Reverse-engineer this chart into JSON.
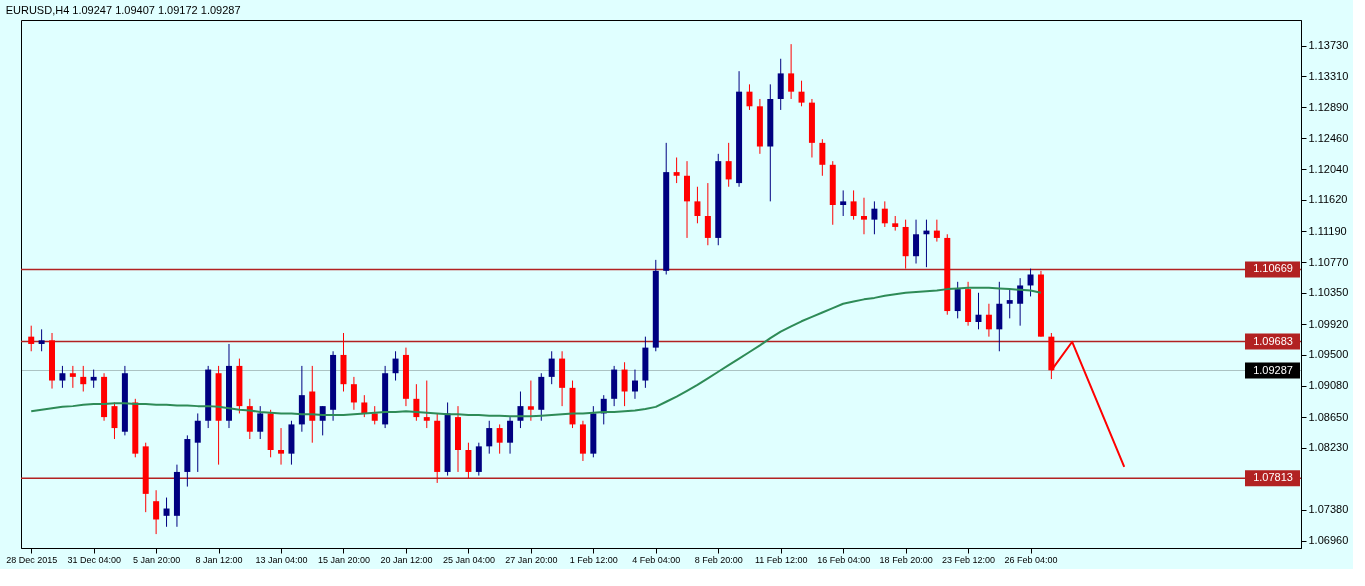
{
  "chart_data": {
    "type": "candlestick",
    "title": "EURUSD,H4  1.09247 1.09407 1.09172 1.09287",
    "categories": [
      "28 Dec 2015",
      null,
      null,
      null,
      null,
      null,
      "31 Dec 04:00",
      null,
      null,
      null,
      null,
      null,
      "5 Jan 20:00",
      null,
      null,
      null,
      null,
      null,
      "8 Jan 12:00",
      null,
      null,
      null,
      null,
      null,
      "13 Jan 04:00",
      null,
      null,
      null,
      null,
      null,
      "15 Jan 20:00",
      null,
      null,
      null,
      null,
      null,
      "20 Jan 12:00",
      null,
      null,
      null,
      null,
      null,
      "25 Jan 04:00",
      null,
      null,
      null,
      null,
      null,
      "27 Jan 20:00",
      null,
      null,
      null,
      null,
      null,
      "1 Feb 12:00",
      null,
      null,
      null,
      null,
      null,
      "4 Feb 04:00",
      null,
      null,
      null,
      null,
      null,
      "8 Feb 20:00",
      null,
      null,
      null,
      null,
      null,
      "11 Feb 12:00",
      null,
      null,
      null,
      null,
      null,
      "16 Feb 04:00",
      null,
      null,
      null,
      null,
      null,
      "18 Feb 20:00",
      null,
      null,
      null,
      null,
      null,
      "23 Feb 12:00",
      null,
      null,
      null,
      null,
      null,
      "26 Feb 04:00",
      null,
      null,
      null,
      null,
      null,
      null,
      null,
      null,
      null,
      null,
      null,
      null,
      null,
      null,
      null,
      null,
      null,
      null,
      null,
      null,
      null,
      null,
      null,
      null,
      null
    ],
    "ohlc": [
      [
        1.0975,
        1.099,
        1.0955,
        1.0965
      ],
      [
        1.0965,
        1.0985,
        1.0955,
        1.097
      ],
      [
        1.097,
        1.098,
        1.0904,
        1.0915
      ],
      [
        1.0915,
        1.0935,
        1.0905,
        1.0925
      ],
      [
        1.0925,
        1.0935,
        1.0905,
        1.092
      ],
      [
        1.092,
        1.0935,
        1.09,
        1.091
      ],
      [
        1.0915,
        1.093,
        1.0905,
        1.092
      ],
      [
        1.092,
        1.0925,
        1.086,
        1.0865
      ],
      [
        1.088,
        1.0885,
        1.0835,
        1.085
      ],
      [
        1.0845,
        1.0935,
        1.084,
        1.0925
      ],
      [
        1.0885,
        1.089,
        1.081,
        1.0815
      ],
      [
        1.0825,
        1.083,
        1.0735,
        1.076
      ],
      [
        1.075,
        1.0765,
        1.0705,
        1.0725
      ],
      [
        1.073,
        1.0755,
        1.0715,
        1.074
      ],
      [
        1.073,
        1.08,
        1.0715,
        1.079
      ],
      [
        1.079,
        1.084,
        1.077,
        1.0835
      ],
      [
        1.083,
        1.087,
        1.079,
        1.086
      ],
      [
        1.086,
        1.0935,
        1.085,
        1.093
      ],
      [
        1.0925,
        1.0935,
        1.08,
        1.086
      ],
      [
        1.086,
        1.0965,
        1.085,
        1.0935
      ],
      [
        1.0935,
        1.0945,
        1.087,
        1.088
      ],
      [
        1.088,
        1.089,
        1.0835,
        1.0845
      ],
      [
        1.0845,
        1.088,
        1.0835,
        1.087
      ],
      [
        1.087,
        1.0875,
        1.081,
        1.082
      ],
      [
        1.082,
        1.085,
        1.08,
        1.0815
      ],
      [
        1.0815,
        1.086,
        1.08,
        1.0855
      ],
      [
        1.0855,
        1.0935,
        1.0845,
        1.0895
      ],
      [
        1.09,
        1.0935,
        1.083,
        1.086
      ],
      [
        1.086,
        1.088,
        1.084,
        1.088
      ],
      [
        1.0875,
        1.0955,
        1.086,
        1.095
      ],
      [
        1.095,
        1.098,
        1.09,
        1.091
      ],
      [
        1.091,
        1.092,
        1.0875,
        1.0885
      ],
      [
        1.0885,
        1.0895,
        1.0865,
        1.087
      ],
      [
        1.087,
        1.088,
        1.0855,
        1.086
      ],
      [
        1.0855,
        1.0935,
        1.085,
        1.0925
      ],
      [
        1.0925,
        1.0955,
        1.0915,
        1.0945
      ],
      [
        1.095,
        1.096,
        1.088,
        1.089
      ],
      [
        1.089,
        1.091,
        1.086,
        1.0865
      ],
      [
        1.0865,
        1.0915,
        1.085,
        1.086
      ],
      [
        1.086,
        1.087,
        1.0775,
        1.079
      ],
      [
        1.079,
        1.0885,
        1.0785,
        1.087
      ],
      [
        1.0865,
        1.088,
        1.079,
        1.082
      ],
      [
        1.082,
        1.083,
        1.0781,
        1.079
      ],
      [
        1.079,
        1.083,
        1.0785,
        1.0825
      ],
      [
        1.0825,
        1.086,
        1.0815,
        1.085
      ],
      [
        1.085,
        1.0855,
        1.0815,
        1.083
      ],
      [
        1.083,
        1.0865,
        1.0815,
        1.086
      ],
      [
        1.086,
        1.09,
        1.085,
        1.088
      ],
      [
        1.088,
        1.0915,
        1.086,
        1.0875
      ],
      [
        1.0875,
        1.0925,
        1.086,
        1.092
      ],
      [
        1.092,
        1.0955,
        1.091,
        1.0945
      ],
      [
        1.0945,
        1.0955,
        1.088,
        1.0905
      ],
      [
        1.0905,
        1.0915,
        1.085,
        1.0855
      ],
      [
        1.0855,
        1.086,
        1.0805,
        1.0815
      ],
      [
        1.0815,
        1.088,
        1.081,
        1.087
      ],
      [
        1.087,
        1.0895,
        1.0855,
        1.089
      ],
      [
        1.089,
        1.0935,
        1.088,
        1.093
      ],
      [
        1.093,
        1.094,
        1.088,
        1.09
      ],
      [
        1.09,
        1.093,
        1.089,
        1.0915
      ],
      [
        1.0915,
        1.0975,
        1.0905,
        1.096
      ],
      [
        1.096,
        1.108,
        1.0955,
        1.1065
      ],
      [
        1.1065,
        1.124,
        1.106,
        1.12
      ],
      [
        1.12,
        1.122,
        1.1185,
        1.1195
      ],
      [
        1.1195,
        1.1215,
        1.111,
        1.116
      ],
      [
        1.116,
        1.118,
        1.113,
        1.114
      ],
      [
        1.114,
        1.1185,
        1.11,
        1.111
      ],
      [
        1.111,
        1.1225,
        1.11,
        1.1215
      ],
      [
        1.1215,
        1.124,
        1.118,
        1.119
      ],
      [
        1.1185,
        1.1338,
        1.118,
        1.131
      ],
      [
        1.131,
        1.132,
        1.1285,
        1.129
      ],
      [
        1.129,
        1.13,
        1.1225,
        1.1235
      ],
      [
        1.1235,
        1.132,
        1.116,
        1.13
      ],
      [
        1.13,
        1.1355,
        1.1285,
        1.1335
      ],
      [
        1.1335,
        1.1375,
        1.13,
        1.131
      ],
      [
        1.131,
        1.1325,
        1.129,
        1.1295
      ],
      [
        1.1295,
        1.13,
        1.122,
        1.124
      ],
      [
        1.124,
        1.1245,
        1.1195,
        1.121
      ],
      [
        1.121,
        1.1215,
        1.1128,
        1.1155
      ],
      [
        1.1155,
        1.1175,
        1.114,
        1.116
      ],
      [
        1.116,
        1.1175,
        1.1135,
        1.114
      ],
      [
        1.114,
        1.1165,
        1.1115,
        1.1135
      ],
      [
        1.1135,
        1.116,
        1.1115,
        1.115
      ],
      [
        1.115,
        1.116,
        1.1125,
        1.113
      ],
      [
        1.113,
        1.114,
        1.112,
        1.1125
      ],
      [
        1.1125,
        1.1135,
        1.1068,
        1.1085
      ],
      [
        1.1085,
        1.1135,
        1.1075,
        1.1115
      ],
      [
        1.1115,
        1.1135,
        1.107,
        1.112
      ],
      [
        1.112,
        1.1135,
        1.1105,
        1.111
      ],
      [
        1.111,
        1.1115,
        1.1005,
        1.101
      ],
      [
        1.101,
        1.105,
        1.1,
        1.104
      ],
      [
        1.104,
        1.105,
        1.099,
        1.0995
      ],
      [
        1.0995,
        1.1035,
        1.0985,
        1.1005
      ],
      [
        1.1005,
        1.102,
        1.0975,
        1.0985
      ],
      [
        1.0985,
        1.105,
        1.0955,
        1.102
      ],
      [
        1.102,
        1.104,
        1.1,
        1.1025
      ],
      [
        1.102,
        1.1055,
        1.099,
        1.1045
      ],
      [
        1.1045,
        1.1068,
        1.103,
        1.106
      ],
      [
        1.106,
        1.1065,
        1.0975,
        1.0975
      ],
      [
        1.0975,
        1.098,
        1.0917,
        1.0929
      ],
      null,
      null,
      null,
      null,
      null,
      null,
      null,
      null,
      null,
      null,
      null,
      null,
      null,
      null,
      null,
      null,
      null,
      null,
      null,
      null,
      null,
      null,
      null
    ],
    "colors": [
      "#ff0000",
      "#000080",
      "#ff0000",
      "#000080",
      "#ff0000",
      "#ff0000",
      "#000080",
      "#ff0000",
      "#ff0000",
      "#000080",
      "#ff0000",
      "#ff0000",
      "#ff0000",
      "#000080",
      "#000080",
      "#000080",
      "#000080",
      "#000080",
      "#ff0000",
      "#000080",
      "#ff0000",
      "#ff0000",
      "#000080",
      "#ff0000",
      "#ff0000",
      "#000080",
      "#000080",
      "#ff0000",
      "#000080",
      "#000080",
      "#ff0000",
      "#ff0000",
      "#ff0000",
      "#ff0000",
      "#000080",
      "#000080",
      "#ff0000",
      "#ff0000",
      "#ff0000",
      "#ff0000",
      "#000080",
      "#ff0000",
      "#ff0000",
      "#000080",
      "#000080",
      "#ff0000",
      "#000080",
      "#000080",
      "#ff0000",
      "#000080",
      "#000080",
      "#ff0000",
      "#ff0000",
      "#ff0000",
      "#000080",
      "#000080",
      "#000080",
      "#ff0000",
      "#000080",
      "#000080",
      "#000080",
      "#000080",
      "#ff0000",
      "#ff0000",
      "#ff0000",
      "#ff0000",
      "#000080",
      "#ff0000",
      "#000080",
      "#ff0000",
      "#ff0000",
      "#000080",
      "#000080",
      "#ff0000",
      "#ff0000",
      "#ff0000",
      "#ff0000",
      "#ff0000",
      "#000080",
      "#ff0000",
      "#ff0000",
      "#000080",
      "#ff0000",
      "#ff0000",
      "#ff0000",
      "#000080",
      "#000080",
      "#ff0000",
      "#ff0000",
      "#000080",
      "#ff0000",
      "#000080",
      "#ff0000",
      "#000080",
      "#000080",
      "#000080",
      "#000080",
      "#ff0000",
      "#ff0000",
      null,
      null,
      null,
      null,
      null,
      null,
      null,
      null,
      null,
      null,
      null,
      null,
      null,
      null,
      null,
      null,
      null,
      null,
      null,
      null,
      null,
      null,
      null
    ],
    "series": [
      {
        "type": "line",
        "color": "#2e8b57",
        "values": [
          1.0873,
          1.0875,
          1.0877,
          1.0879,
          1.088,
          1.0882,
          1.0883,
          1.0883,
          1.0884,
          1.0884,
          1.0883,
          1.0883,
          1.0882,
          1.0882,
          1.0881,
          1.0881,
          1.088,
          1.088,
          1.0879,
          1.0877,
          1.0875,
          1.0874,
          1.0872,
          1.0871,
          1.087,
          1.087,
          1.0869,
          1.0869,
          1.0868,
          1.0868,
          1.0868,
          1.0869,
          1.087,
          1.0871,
          1.0872,
          1.0872,
          1.0873,
          1.0872,
          1.0871,
          1.087,
          1.0869,
          1.0869,
          1.0868,
          1.0868,
          1.0867,
          1.0867,
          1.0866,
          1.0866,
          1.0866,
          1.0867,
          1.0868,
          1.0869,
          1.087,
          1.087,
          1.0871,
          1.0872,
          1.0872,
          1.0873,
          1.0874,
          1.0876,
          1.0879,
          1.0886,
          1.0893,
          1.0901,
          1.0909,
          1.0918,
          1.0927,
          1.0936,
          1.0945,
          1.0954,
          1.0963,
          1.0973,
          1.0982,
          1.0989,
          1.0996,
          1.1002,
          1.1008,
          1.1014,
          1.102,
          1.1023,
          1.1026,
          1.1028,
          1.1031,
          1.1033,
          1.1035,
          1.1036,
          1.1037,
          1.1038,
          1.104,
          1.1041,
          1.1042,
          1.1042,
          1.1042,
          1.1041,
          1.104,
          1.1039,
          1.1038,
          1.1035,
          null,
          null,
          null,
          null,
          null,
          null,
          null,
          null,
          null,
          null,
          null,
          null,
          null,
          null,
          null,
          null,
          null,
          null,
          null,
          null,
          null,
          null,
          null,
          null
        ]
      },
      {
        "type": "line",
        "color": "#ff0000",
        "values": [
          null,
          null,
          null,
          null,
          null,
          null,
          null,
          null,
          null,
          null,
          null,
          null,
          null,
          null,
          null,
          null,
          null,
          null,
          null,
          null,
          null,
          null,
          null,
          null,
          null,
          null,
          null,
          null,
          null,
          null,
          null,
          null,
          null,
          null,
          null,
          null,
          null,
          null,
          null,
          null,
          null,
          null,
          null,
          null,
          null,
          null,
          null,
          null,
          null,
          null,
          null,
          null,
          null,
          null,
          null,
          null,
          null,
          null,
          null,
          null,
          null,
          null,
          null,
          null,
          null,
          null,
          null,
          null,
          null,
          null,
          null,
          null,
          null,
          null,
          null,
          null,
          null,
          null,
          null,
          null,
          null,
          null,
          null,
          null,
          null,
          null,
          null,
          null,
          null,
          null,
          null,
          null,
          null,
          null,
          null,
          null,
          null,
          null,
          1.0929,
          null,
          1.0968,
          null,
          null,
          null,
          null,
          1.0797,
          null,
          null,
          null,
          null,
          null,
          null,
          null,
          null,
          null,
          null,
          null,
          null,
          null,
          null,
          null,
          null
        ]
      }
    ],
    "ylim": [
      1.0686,
      1.1408
    ],
    "yticks": [
      {
        "value": 1.1373,
        "label": "1.13730"
      },
      {
        "value": 1.1331,
        "label": "1.13310"
      },
      {
        "value": 1.1289,
        "label": "1.12890"
      },
      {
        "value": 1.1246,
        "label": "1.12460"
      },
      {
        "value": 1.1204,
        "label": "1.12040"
      },
      {
        "value": 1.1162,
        "label": "1.11620"
      },
      {
        "value": 1.1119,
        "label": "1.11190"
      },
      {
        "value": 1.1077,
        "label": "1.10770"
      },
      {
        "value": 1.1035,
        "label": "1.10350"
      },
      {
        "value": 1.0992,
        "label": "1.09920"
      },
      {
        "value": 1.095,
        "label": "1.09500"
      },
      {
        "value": 1.0908,
        "label": "1.09080"
      },
      {
        "value": 1.0865,
        "label": "1.08650"
      },
      {
        "value": 1.0823,
        "label": "1.08230"
      },
      {
        "value": 1.0738,
        "label": "1.07380"
      },
      {
        "value": 1.0696,
        "label": "1.06960"
      }
    ],
    "ref_lines": [
      {
        "axis": "y",
        "value": 1.10669,
        "label": "1.10669",
        "color": "#b22222"
      },
      {
        "axis": "y",
        "value": 1.09683,
        "label": "1.09683",
        "color": "#b22222"
      },
      {
        "axis": "y",
        "value": 1.07813,
        "label": "1.07813",
        "color": "#b22222"
      },
      {
        "axis": "y",
        "value": 1.09287,
        "label": "1.09287",
        "color": "#000000"
      }
    ],
    "grid": false
  }
}
